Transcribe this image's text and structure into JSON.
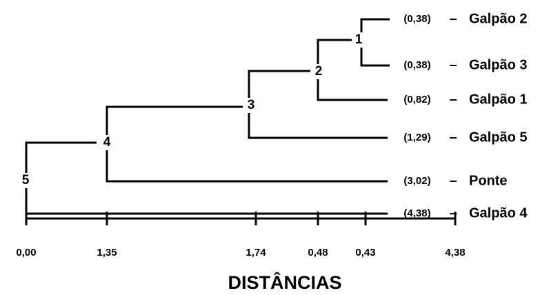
{
  "leaves": [
    {
      "distance": "(0,38)",
      "name": "Galpão 2"
    },
    {
      "distance": "(0,38)",
      "name": "Galpão 3"
    },
    {
      "distance": "(0,82)",
      "name": "Galpão 1"
    },
    {
      "distance": "(1,29)",
      "name": "Galpão 5"
    },
    {
      "distance": "(3,02)",
      "name": "Ponte"
    },
    {
      "distance": "(4,38)",
      "name": "Galpão 4"
    }
  ],
  "separator": "–",
  "nodes": [
    "1",
    "2",
    "3",
    "4",
    "5"
  ],
  "axis": {
    "ticks": [
      "0,00",
      "1,35",
      "1,74",
      "0,48",
      "0,43",
      "4,38"
    ],
    "title": "DISTÂNCIAS"
  }
}
